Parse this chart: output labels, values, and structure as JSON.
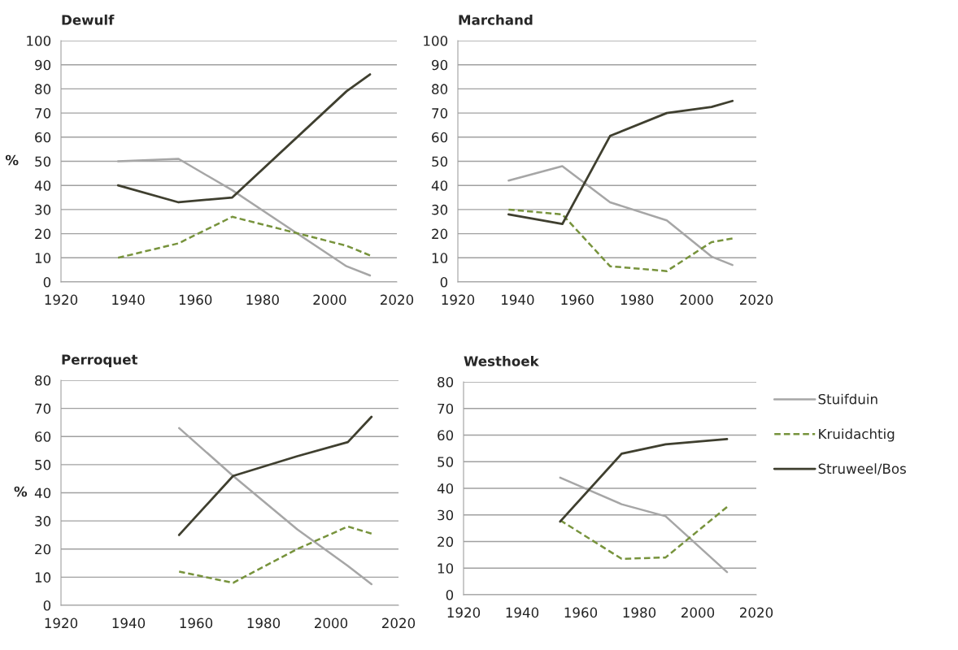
{
  "chart_data": [
    {
      "type": "line",
      "title": "Dewulf",
      "ylabel": "%",
      "xlim": [
        1920,
        2020
      ],
      "xticks": [
        1920,
        1940,
        1960,
        1980,
        2000,
        2020
      ],
      "ylim": [
        0,
        100
      ],
      "yticks": [
        0,
        10,
        20,
        30,
        40,
        50,
        60,
        70,
        80,
        90,
        100
      ],
      "grid": "y",
      "legend": false,
      "series": [
        {
          "color": "#a6a6a6",
          "line_style": "solid",
          "x": [
            1937,
            1955,
            1971,
            2005,
            2012
          ],
          "values": [
            50,
            51,
            38,
            6.5,
            2.7
          ]
        },
        {
          "color": "#77933c",
          "line_style": "dashed",
          "x": [
            1937,
            1955,
            1971,
            2005,
            2012
          ],
          "values": [
            10,
            16,
            27,
            15,
            11
          ]
        },
        {
          "color": "#3f3f2f",
          "line_style": "solid",
          "x": [
            1937,
            1955,
            1971,
            2005,
            2012
          ],
          "values": [
            40,
            33,
            35,
            79,
            86
          ]
        }
      ]
    },
    {
      "type": "line",
      "title": "Marchand",
      "xlim": [
        1920,
        2020
      ],
      "xticks": [
        1920,
        1940,
        1960,
        1980,
        2000,
        2020
      ],
      "ylim": [
        0,
        100
      ],
      "yticks": [
        0,
        10,
        20,
        30,
        40,
        50,
        60,
        70,
        80,
        90,
        100
      ],
      "grid": "y",
      "legend": false,
      "series": [
        {
          "color": "#a6a6a6",
          "line_style": "solid",
          "x": [
            1937,
            1955,
            1971,
            1990,
            2005,
            2012
          ],
          "values": [
            42,
            48,
            33,
            25.5,
            10.5,
            7
          ]
        },
        {
          "color": "#77933c",
          "line_style": "dashed",
          "x": [
            1937,
            1955,
            1971,
            1990,
            2005,
            2012
          ],
          "values": [
            30,
            28,
            6.5,
            4.5,
            16.5,
            18
          ]
        },
        {
          "color": "#3f3f2f",
          "line_style": "solid",
          "x": [
            1937,
            1955,
            1971,
            1990,
            2005,
            2012
          ],
          "values": [
            28,
            24,
            60.5,
            70,
            72.5,
            75
          ]
        }
      ]
    },
    {
      "type": "line",
      "title": "Perroquet",
      "ylabel": "%",
      "xlim": [
        1920,
        2020
      ],
      "xticks": [
        1920,
        1940,
        1960,
        1980,
        2000,
        2020
      ],
      "ylim": [
        0,
        80
      ],
      "yticks": [
        0,
        10,
        20,
        30,
        40,
        50,
        60,
        70,
        80
      ],
      "grid": "y",
      "legend": false,
      "series": [
        {
          "color": "#a6a6a6",
          "line_style": "solid",
          "x": [
            1955,
            1971,
            1990,
            2005,
            2012
          ],
          "values": [
            63,
            46,
            27,
            14,
            7.5
          ]
        },
        {
          "color": "#77933c",
          "line_style": "dashed",
          "x": [
            1955,
            1971,
            1990,
            2005,
            2012
          ],
          "values": [
            12,
            8,
            20,
            28,
            25.5
          ]
        },
        {
          "color": "#3f3f2f",
          "line_style": "solid",
          "x": [
            1955,
            1971,
            1990,
            2005,
            2012
          ],
          "values": [
            25,
            46,
            53,
            58,
            67
          ]
        }
      ]
    },
    {
      "type": "line",
      "title": "Westhoek",
      "xlim": [
        1920,
        2020
      ],
      "xticks": [
        1920,
        1940,
        1960,
        1980,
        2000,
        2020
      ],
      "ylim": [
        0,
        80
      ],
      "yticks": [
        0,
        10,
        20,
        30,
        40,
        50,
        60,
        70,
        80
      ],
      "grid": "y",
      "legend": "right",
      "series": [
        {
          "name": "Stuifduin",
          "color": "#a6a6a6",
          "line_style": "solid",
          "x": [
            1953,
            1974,
            1989,
            2010
          ],
          "values": [
            44,
            34,
            29.5,
            8.5
          ]
        },
        {
          "name": "Kruidachtig",
          "color": "#77933c",
          "line_style": "dashed",
          "x": [
            1953,
            1974,
            1989,
            2010
          ],
          "values": [
            28,
            13.5,
            14,
            33
          ]
        },
        {
          "name": "Struweel/Bos",
          "color": "#3f3f2f",
          "line_style": "solid",
          "x": [
            1953,
            1974,
            1989,
            2010
          ],
          "values": [
            27.5,
            53,
            56.5,
            58.5
          ]
        }
      ]
    }
  ]
}
